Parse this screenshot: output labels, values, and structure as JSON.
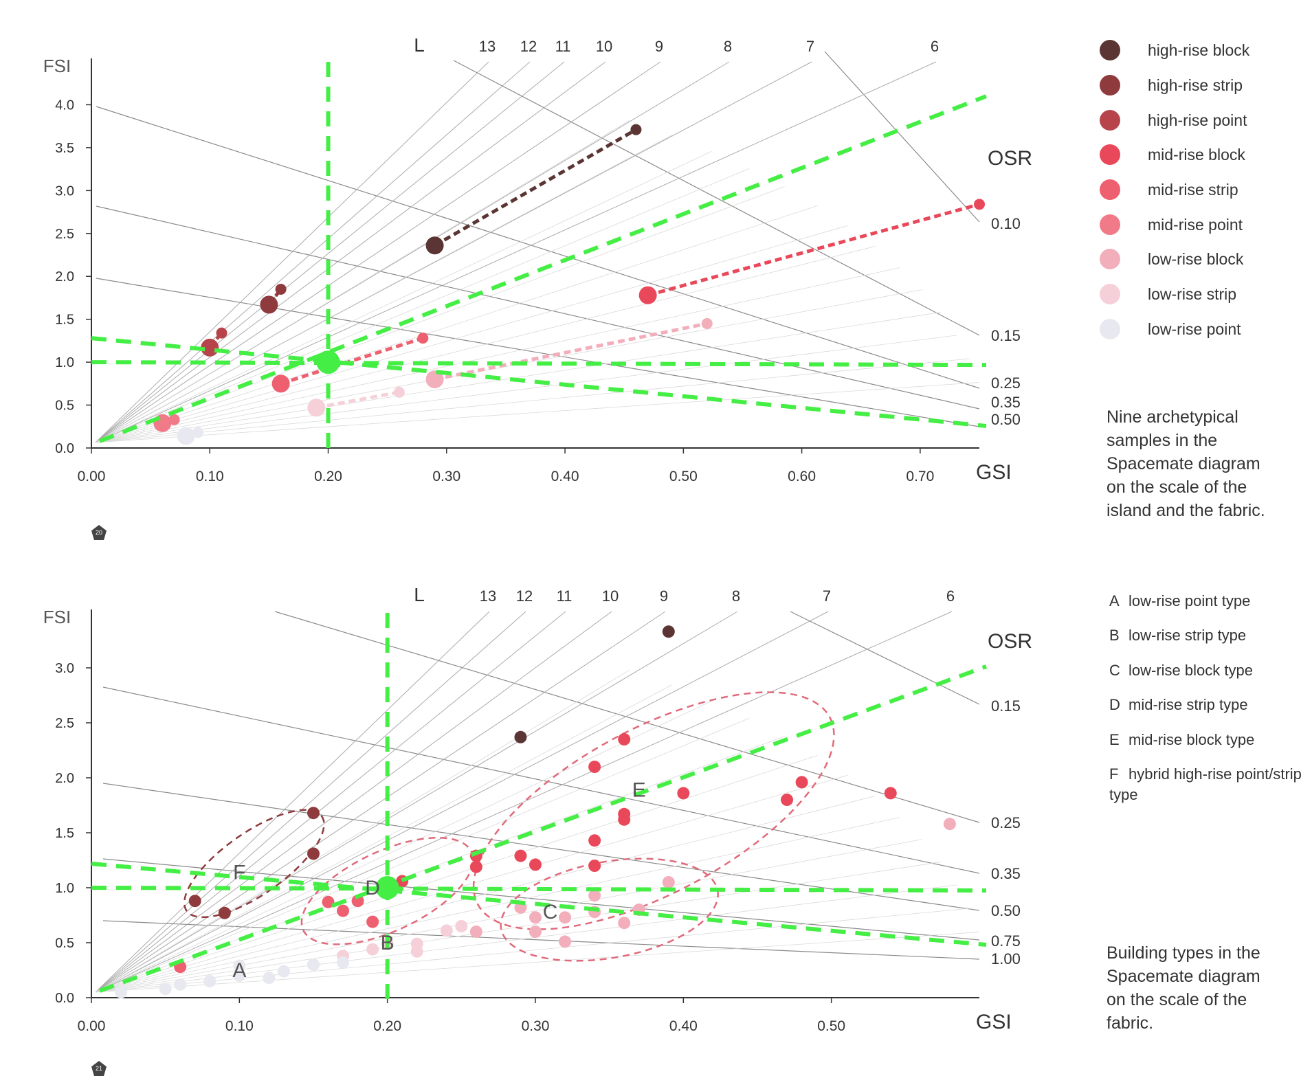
{
  "chart_data": [
    {
      "type": "scatter",
      "title": "",
      "xlabel": "GSI",
      "ylabel": "FSI",
      "xlim": [
        0,
        0.75
      ],
      "ylim": [
        0,
        4.5
      ],
      "x_ticks": [
        0.0,
        0.1,
        0.2,
        0.3,
        0.4,
        0.5,
        0.6,
        0.7
      ],
      "x_tick_labels": [
        "0.00",
        "0.10",
        "0.20",
        "0.30",
        "0.40",
        "0.50",
        "0.60",
        "0.70"
      ],
      "y_ticks": [
        0.0,
        0.5,
        1.0,
        1.5,
        2.0,
        2.5,
        3.0,
        3.5,
        4.0
      ],
      "y_tick_labels": [
        "0.0",
        "0.5",
        "1.0",
        "1.5",
        "2.0",
        "2.5",
        "3.0",
        "3.5",
        "4.0"
      ],
      "l_label": "L",
      "l_lines": [
        "6",
        "7",
        "8",
        "9",
        "10",
        "11",
        "12",
        "13"
      ],
      "osr_label": "OSR",
      "osr_lines": [
        "0.10",
        "0.15",
        "0.25",
        "0.35",
        "0.50"
      ],
      "series": [
        {
          "name": "high-rise block",
          "color": "#5a3533",
          "points": [
            [
              0.29,
              2.36
            ],
            [
              0.46,
              3.71
            ]
          ]
        },
        {
          "name": "high-rise strip",
          "color": "#8f3b3e",
          "points": [
            [
              0.15,
              1.67
            ],
            [
              0.16,
              1.85
            ]
          ]
        },
        {
          "name": "high-rise point",
          "color": "#b8444b",
          "points": [
            [
              0.1,
              1.17
            ],
            [
              0.11,
              1.34
            ]
          ]
        },
        {
          "name": "mid-rise block",
          "color": "#e9485a",
          "points": [
            [
              0.47,
              1.78
            ],
            [
              0.75,
              2.84
            ]
          ]
        },
        {
          "name": "mid-rise strip",
          "color": "#ee5f6f",
          "points": [
            [
              0.16,
              0.75
            ],
            [
              0.28,
              1.28
            ]
          ]
        },
        {
          "name": "mid-rise point",
          "color": "#f07a88",
          "points": [
            [
              0.06,
              0.29
            ],
            [
              0.07,
              0.33
            ]
          ]
        },
        {
          "name": "low-rise block",
          "color": "#f3aebb",
          "points": [
            [
              0.29,
              0.8
            ],
            [
              0.52,
              1.45
            ]
          ]
        },
        {
          "name": "low-rise strip",
          "color": "#f6d0d8",
          "points": [
            [
              0.19,
              0.47
            ],
            [
              0.26,
              0.65
            ]
          ]
        },
        {
          "name": "low-rise point",
          "color": "#e8e8f0",
          "points": [
            [
              0.08,
              0.14
            ],
            [
              0.09,
              0.18
            ]
          ]
        }
      ],
      "highlight_point": {
        "x": 0.2,
        "y": 1.0,
        "color": "#44ee44"
      }
    },
    {
      "type": "scatter",
      "title": "",
      "xlabel": "GSI",
      "ylabel": "FSI",
      "xlim": [
        0,
        0.6
      ],
      "ylim": [
        0,
        3.5
      ],
      "x_ticks": [
        0.0,
        0.1,
        0.2,
        0.3,
        0.4,
        0.5
      ],
      "x_tick_labels": [
        "0.00",
        "0.10",
        "0.20",
        "0.30",
        "0.40",
        "0.50"
      ],
      "y_ticks": [
        0.0,
        0.5,
        1.0,
        1.5,
        2.0,
        2.5,
        3.0
      ],
      "y_tick_labels": [
        "0.0",
        "0.5",
        "1.0",
        "1.5",
        "2.0",
        "2.5",
        "3.0"
      ],
      "l_label": "L",
      "l_lines": [
        "6",
        "7",
        "8",
        "9",
        "10",
        "11",
        "12",
        "13"
      ],
      "osr_label": "OSR",
      "osr_lines": [
        "0.15",
        "0.25",
        "0.35",
        "0.50",
        "0.75",
        "1.00"
      ],
      "series": [
        {
          "name": "high-rise block",
          "color": "#5a3533",
          "points": [
            [
              0.29,
              2.37
            ],
            [
              0.39,
              3.33
            ]
          ]
        },
        {
          "name": "high-rise strip",
          "color": "#8f3b3e",
          "points": [
            [
              0.15,
              1.68
            ],
            [
              0.07,
              0.88
            ],
            [
              0.09,
              0.77
            ],
            [
              0.15,
              1.31
            ]
          ]
        },
        {
          "name": "mid-rise block",
          "color": "#e9485a",
          "points": [
            [
              0.4,
              1.86
            ],
            [
              0.36,
              2.35
            ],
            [
              0.34,
              2.1
            ],
            [
              0.36,
              1.67
            ],
            [
              0.36,
              1.62
            ],
            [
              0.34,
              1.43
            ],
            [
              0.34,
              1.2
            ],
            [
              0.29,
              1.29
            ],
            [
              0.3,
              1.21
            ],
            [
              0.26,
              1.29
            ],
            [
              0.26,
              1.19
            ],
            [
              0.21,
              1.06
            ],
            [
              0.47,
              1.8
            ],
            [
              0.48,
              1.96
            ],
            [
              0.54,
              1.86
            ]
          ]
        },
        {
          "name": "mid-rise strip",
          "color": "#ee5f6f",
          "points": [
            [
              0.17,
              0.79
            ],
            [
              0.16,
              0.87
            ],
            [
              0.18,
              0.88
            ],
            [
              0.19,
              0.69
            ],
            [
              0.06,
              0.28
            ]
          ]
        },
        {
          "name": "low-rise block",
          "color": "#f3aebb",
          "points": [
            [
              0.58,
              1.58
            ],
            [
              0.39,
              1.05
            ],
            [
              0.34,
              0.93
            ],
            [
              0.29,
              0.82
            ],
            [
              0.3,
              0.73
            ],
            [
              0.32,
              0.73
            ],
            [
              0.34,
              0.78
            ],
            [
              0.3,
              0.6
            ],
            [
              0.26,
              0.6
            ],
            [
              0.32,
              0.51
            ],
            [
              0.36,
              0.68
            ],
            [
              0.37,
              0.8
            ]
          ]
        },
        {
          "name": "low-rise strip",
          "color": "#f6d0d8",
          "points": [
            [
              0.22,
              0.49
            ],
            [
              0.24,
              0.61
            ],
            [
              0.22,
              0.42
            ],
            [
              0.17,
              0.38
            ],
            [
              0.2,
              0.49
            ],
            [
              0.25,
              0.65
            ],
            [
              0.15,
              0.3
            ],
            [
              0.19,
              0.44
            ]
          ]
        },
        {
          "name": "low-rise point",
          "color": "#e8e8f0",
          "points": [
            [
              0.08,
              0.15
            ],
            [
              0.1,
              0.2
            ],
            [
              0.12,
              0.18
            ],
            [
              0.13,
              0.24
            ],
            [
              0.15,
              0.3
            ],
            [
              0.17,
              0.32
            ],
            [
              0.06,
              0.12
            ],
            [
              0.05,
              0.08
            ],
            [
              0.02,
              0.05
            ],
            [
              0.1,
              0.29
            ]
          ]
        }
      ],
      "clusters": [
        {
          "label": "A",
          "x": 0.1,
          "y": 0.25
        },
        {
          "label": "B",
          "x": 0.2,
          "y": 0.5
        },
        {
          "label": "C",
          "x": 0.31,
          "y": 0.78
        },
        {
          "label": "D",
          "x": 0.19,
          "y": 1.0
        },
        {
          "label": "E",
          "x": 0.37,
          "y": 1.89
        },
        {
          "label": "F",
          "x": 0.1,
          "y": 1.14
        }
      ],
      "highlight_point": {
        "x": 0.2,
        "y": 1.0,
        "color": "#44ee44"
      }
    }
  ],
  "legend": [
    {
      "label": "high-rise block",
      "color": "#5a3533"
    },
    {
      "label": "high-rise strip",
      "color": "#8f3b3e"
    },
    {
      "label": "high-rise point",
      "color": "#b8444b"
    },
    {
      "label": "mid-rise block",
      "color": "#e9485a"
    },
    {
      "label": "mid-rise strip",
      "color": "#ee5f6f"
    },
    {
      "label": "mid-rise point",
      "color": "#f07a88"
    },
    {
      "label": "low-rise block",
      "color": "#f3aebb"
    },
    {
      "label": "low-rise strip",
      "color": "#f6d0d8"
    },
    {
      "label": "low-rise point",
      "color": "#e8e8f0"
    }
  ],
  "caption_top": "Nine archetypical samples in the Spacemate diagram on the scale of the island and the fabric.",
  "types_legend": [
    {
      "letter": "A",
      "text": "low-rise point type"
    },
    {
      "letter": "B",
      "text": "low-rise strip type"
    },
    {
      "letter": "C",
      "text": "low-rise block type"
    },
    {
      "letter": "D",
      "text": "mid-rise strip type"
    },
    {
      "letter": "E",
      "text": "mid-rise block type"
    },
    {
      "letter": "F",
      "text": "hybrid high-rise point/strip type"
    }
  ],
  "caption_bottom": "Building types in the Spacemate diagram on the scale of the fabric.",
  "page_markers": [
    "20",
    "21"
  ]
}
